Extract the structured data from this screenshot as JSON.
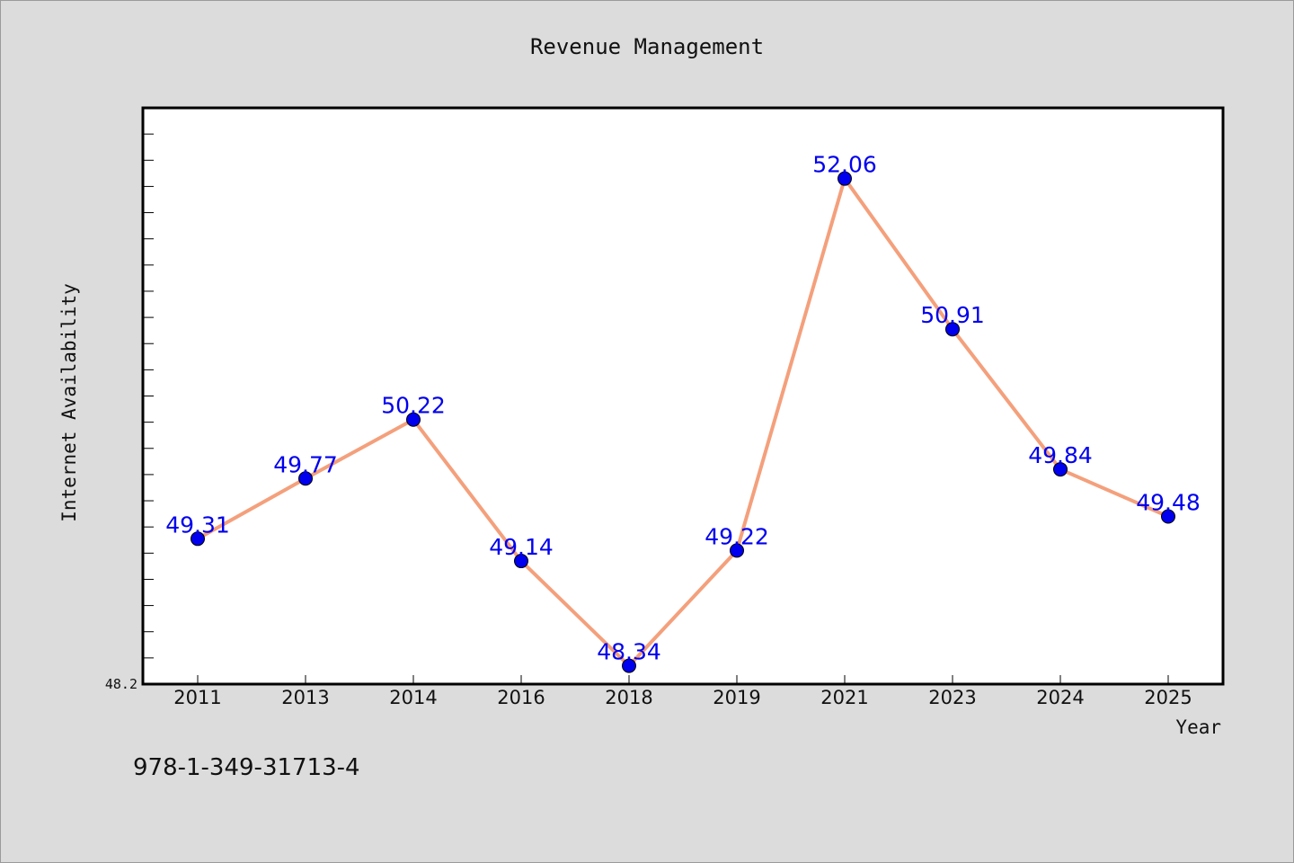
{
  "chart_data": {
    "type": "line",
    "title": "Revenue Management",
    "xlabel": "Year",
    "ylabel": "Internet Availability",
    "categories": [
      "2011",
      "2013",
      "2014",
      "2016",
      "2018",
      "2019",
      "2021",
      "2023",
      "2024",
      "2025"
    ],
    "series": [
      {
        "values": [
          49.31,
          49.77,
          50.22,
          49.14,
          48.34,
          49.22,
          52.06,
          50.91,
          49.84,
          49.48
        ],
        "line_color": "#f4a07c",
        "marker_color": "#0000ee",
        "label_color": "#0000ee"
      }
    ],
    "data_labels": [
      "49.31",
      "49.77",
      "50.22",
      "49.14",
      "48.34",
      "49.22",
      "52.06",
      "50.91",
      "49.84",
      "49.48"
    ],
    "y_tick_labels": [
      "48.2"
    ],
    "ylim": [
      48.2,
      52.6
    ],
    "grid": false,
    "legend": "none"
  },
  "footer": {
    "text": "978-1-349-31713-4"
  }
}
